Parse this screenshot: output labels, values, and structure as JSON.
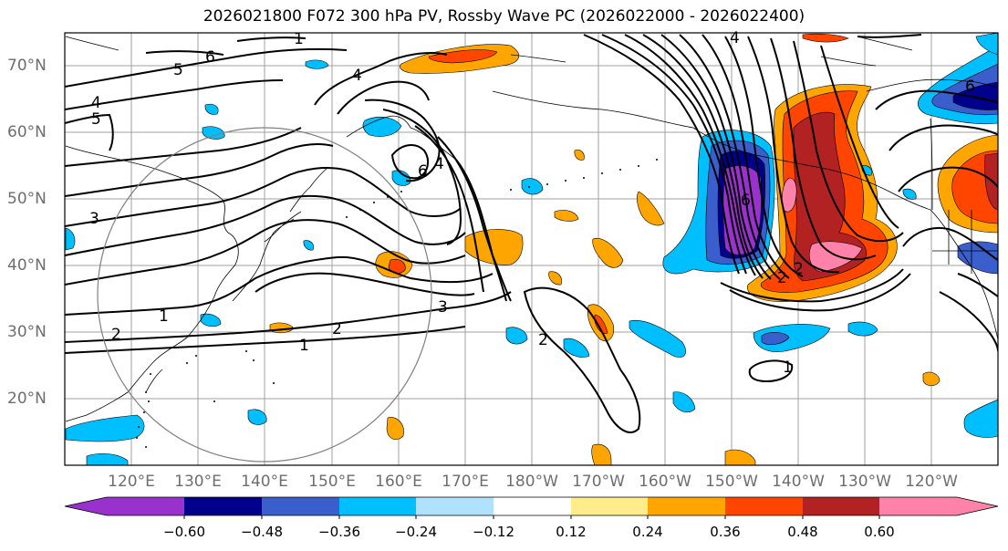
{
  "title": "2026021800 F072 300 hPa PV, Rossby Wave PC (2026022000 - 2026022400)",
  "lat_labels": [
    "70°N",
    "60°N",
    "50°N",
    "40°N",
    "30°N",
    "20°N"
  ],
  "lon_labels": [
    "120°E",
    "130°E",
    "140°E",
    "150°E",
    "160°E",
    "170°E",
    "180°W",
    "170°W",
    "160°W",
    "150°W",
    "140°W",
    "130°W",
    "120°W"
  ],
  "colorbar": {
    "ticks": [
      "−0.60",
      "−0.48",
      "−0.36",
      "−0.24",
      "−0.12",
      "0.12",
      "0.24",
      "0.36",
      "0.48",
      "0.60"
    ],
    "colors": [
      "#9932cc",
      "#00008b",
      "#3a5fcd",
      "#00bfff",
      "#b0e2ff",
      "#ffffff",
      "#ffec8b",
      "#ffa500",
      "#ff4500",
      "#b22222",
      "#ff82ab"
    ]
  },
  "contour_labels": {
    "top_left": [
      "1",
      "6",
      "5",
      "4",
      "5"
    ],
    "central": [
      "4",
      "6",
      "4",
      "3"
    ],
    "japan": [
      "1",
      "2",
      "2",
      "1",
      "3"
    ],
    "pacific": [
      "2",
      "4",
      "6",
      "2",
      "2",
      "1",
      "6"
    ]
  }
}
